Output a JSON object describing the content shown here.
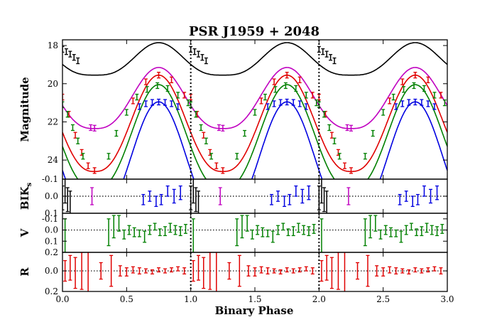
{
  "chart_data": {
    "type": "line",
    "title": "PSR J1959 + 2048",
    "xlabel": "Binary Phase",
    "xlim": [
      0.0,
      3.0
    ],
    "xticks": [
      "0.0",
      "0.5",
      "1.0",
      "1.5",
      "2.0",
      "2.5",
      "3.0"
    ],
    "xtick_values": [
      0.0,
      0.5,
      1.0,
      1.5,
      2.0,
      2.5,
      3.0
    ],
    "phase_markers": [
      1.0,
      2.0
    ],
    "panels": [
      {
        "id": "magnitude",
        "ylabel": "Magnitude",
        "ylim": [
          17.7,
          25.0
        ],
        "inverted": true,
        "yticks": [
          "18",
          "20",
          "22",
          "24"
        ],
        "ytick_values": [
          18,
          20,
          22,
          24
        ],
        "model_curves": [
          {
            "name": "K_s",
            "color": "#000000",
            "max_mag": 17.85,
            "min_mag": 19.55,
            "amplitude_power": 1.6
          },
          {
            "name": "I",
            "color": "#c000c0",
            "max_mag": 19.15,
            "min_mag": 22.35,
            "amplitude_power": 1.4
          },
          {
            "name": "R",
            "color": "#e00000",
            "max_mag": 19.55,
            "min_mag": 24.6,
            "amplitude_power": 1.3
          },
          {
            "name": "V",
            "color": "#008000",
            "max_mag": 20.05,
            "min_mag": 25.5,
            "amplitude_power": 1.3
          },
          {
            "name": "B",
            "color": "#0000e0",
            "max_mag": 20.95,
            "min_mag": 27.0,
            "amplitude_power": 1.3
          }
        ],
        "observations": [
          {
            "band": "K_s",
            "color": "#000000",
            "phase": [
              0.0,
              0.03,
              0.06,
              0.09,
              0.12
            ],
            "mag": [
              18.2,
              18.32,
              18.45,
              18.62,
              18.8
            ]
          },
          {
            "band": "I",
            "color": "#c000c0",
            "phase": [
              0.22,
              0.25
            ],
            "mag": [
              22.3,
              22.33
            ]
          },
          {
            "band": "R",
            "color": "#e00000",
            "phase": [
              0.0,
              0.05,
              0.1,
              0.15,
              0.2,
              0.25,
              0.55,
              0.65,
              0.75,
              0.85,
              0.95
            ],
            "mag": [
              20.7,
              21.6,
              22.7,
              23.6,
              24.3,
              24.55,
              20.9,
              19.9,
              19.55,
              19.8,
              20.6
            ]
          },
          {
            "band": "V",
            "color": "#008000",
            "phase": [
              0.0,
              0.04,
              0.08,
              0.12,
              0.16,
              0.36,
              0.42,
              0.5,
              0.58,
              0.66,
              0.74,
              0.82,
              0.9,
              0.98
            ],
            "mag": [
              21.1,
              21.6,
              22.3,
              23.0,
              23.8,
              23.8,
              22.6,
              21.5,
              20.7,
              20.3,
              20.1,
              20.25,
              20.6,
              21.0
            ]
          },
          {
            "band": "B",
            "color": "#0000e0",
            "phase": [
              0.6,
              0.65,
              0.7,
              0.75,
              0.8,
              0.85,
              0.9
            ],
            "mag": [
              21.2,
              21.05,
              20.98,
              20.96,
              20.98,
              21.05,
              21.2
            ]
          }
        ]
      },
      {
        "id": "resid-bik",
        "ylabel": "BIK",
        "ylabel_sub": "s",
        "ylim": [
          -0.1,
          0.1
        ],
        "inverted": true,
        "yticks": [
          "-0.1",
          "0.0",
          "0.1"
        ],
        "ytick_values": [
          -0.1,
          0.0,
          0.1
        ],
        "series": [
          {
            "name": "K_s",
            "color": "#000000",
            "phase": [
              0.0,
              0.02,
              0.04,
              0.06
            ],
            "value": [
              0.01,
              -0.04,
              0.02,
              0.05
            ],
            "error": [
              0.07,
              0.08,
              0.07,
              0.08
            ]
          },
          {
            "name": "I",
            "color": "#c000c0",
            "phase": [
              0.23
            ],
            "value": [
              0.0
            ],
            "error": [
              0.05
            ]
          },
          {
            "name": "B",
            "color": "#0000e0",
            "phase": [
              0.63,
              0.68,
              0.73,
              0.77,
              0.82,
              0.87,
              0.92
            ],
            "value": [
              0.02,
              0.0,
              0.03,
              0.02,
              -0.03,
              0.0,
              -0.02
            ],
            "error": [
              0.03,
              0.03,
              0.03,
              0.03,
              0.03,
              0.04,
              0.04
            ]
          }
        ]
      },
      {
        "id": "resid-v",
        "ylabel": "V",
        "ylim": [
          -0.15,
          0.2
        ],
        "inverted": true,
        "yticks": [
          "-0.1",
          "0.0",
          "0.1",
          "0.2"
        ],
        "ytick_values": [
          -0.1,
          0.0,
          0.1,
          0.2
        ],
        "series": [
          {
            "name": "V",
            "color": "#008000",
            "phase": [
              0.02,
              0.36,
              0.4,
              0.44,
              0.48,
              0.52,
              0.56,
              0.6,
              0.64,
              0.68,
              0.72,
              0.76,
              0.8,
              0.84,
              0.88,
              0.92,
              0.96
            ],
            "value": [
              0.05,
              0.02,
              -0.03,
              -0.06,
              0.04,
              0.0,
              0.02,
              0.03,
              0.06,
              0.0,
              -0.03,
              0.02,
              0.01,
              -0.02,
              0.0,
              0.01,
              -0.01
            ],
            "error": [
              0.15,
              0.12,
              0.1,
              0.07,
              0.04,
              0.04,
              0.04,
              0.03,
              0.05,
              0.04,
              0.03,
              0.03,
              0.04,
              0.04,
              0.04,
              0.04,
              0.04
            ]
          }
        ]
      },
      {
        "id": "resid-r",
        "ylabel": "R",
        "ylim": [
          -0.18,
          0.2
        ],
        "inverted": true,
        "yticks": [
          "0.0",
          "0.2"
        ],
        "ytick_values": [
          0.0,
          0.2
        ],
        "series": [
          {
            "name": "R",
            "color": "#e00000",
            "phase": [
              0.02,
              0.06,
              0.1,
              0.15,
              0.2,
              0.3,
              0.38,
              0.45,
              0.5,
              0.55,
              0.6,
              0.65,
              0.7,
              0.75,
              0.8,
              0.85,
              0.9,
              0.95
            ],
            "value": [
              0.0,
              -0.03,
              0.02,
              0.0,
              0.01,
              0.0,
              0.0,
              0.0,
              0.01,
              -0.01,
              0.0,
              0.0,
              0.01,
              -0.01,
              0.0,
              -0.01,
              -0.02,
              0.0
            ],
            "error": [
              0.1,
              0.12,
              0.15,
              0.18,
              0.2,
              0.08,
              0.15,
              0.05,
              0.04,
              0.03,
              0.03,
              0.02,
              0.02,
              0.02,
              0.02,
              0.02,
              0.02,
              0.03
            ]
          }
        ]
      }
    ]
  }
}
